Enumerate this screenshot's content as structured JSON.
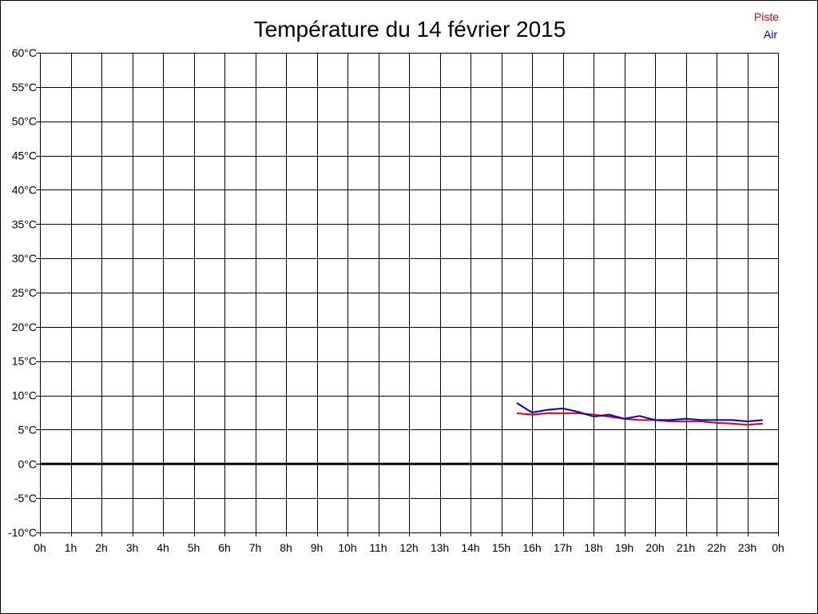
{
  "chart_data": {
    "type": "line",
    "title": "Température du 14 février 2015",
    "xlabel": "",
    "ylabel": "",
    "x_tick_labels": [
      "0h",
      "1h",
      "2h",
      "3h",
      "4h",
      "5h",
      "6h",
      "7h",
      "8h",
      "9h",
      "10h",
      "11h",
      "12h",
      "13h",
      "14h",
      "15h",
      "16h",
      "17h",
      "18h",
      "19h",
      "20h",
      "21h",
      "22h",
      "23h",
      "0h"
    ],
    "y_tick_labels": [
      "60°C",
      "55°C",
      "50°C",
      "45°C",
      "40°C",
      "35°C",
      "30°C",
      "25°C",
      "20°C",
      "15°C",
      "10°C",
      "5°C",
      "0°C",
      "-5°C",
      "-10°C"
    ],
    "xlim": [
      0,
      24
    ],
    "ylim": [
      -10,
      60
    ],
    "x_tick_step_hours": 1,
    "y_tick_step": 5,
    "grid": true,
    "zero_line": true,
    "legend_position": "top-right",
    "series": [
      {
        "name": "Piste",
        "color": "#dd0000",
        "x": [
          15.5,
          16.0,
          16.5,
          17.0,
          17.5,
          18.0,
          18.5,
          19.0,
          19.5,
          20.0,
          20.5,
          21.0,
          21.5,
          22.0,
          22.5,
          23.0,
          23.5
        ],
        "y": [
          7.4,
          7.2,
          7.4,
          7.4,
          7.4,
          7.2,
          6.9,
          6.6,
          6.4,
          6.4,
          6.2,
          6.2,
          6.2,
          6.0,
          5.9,
          5.7,
          5.9
        ]
      },
      {
        "name": "Air",
        "color": "#0000cc",
        "x": [
          15.5,
          16.0,
          16.5,
          17.0,
          17.5,
          18.0,
          18.5,
          19.0,
          19.5,
          20.0,
          20.5,
          21.0,
          21.5,
          22.0,
          22.5,
          23.0,
          23.5
        ],
        "y": [
          8.9,
          7.5,
          7.9,
          8.1,
          7.6,
          6.9,
          7.2,
          6.6,
          7.0,
          6.4,
          6.4,
          6.6,
          6.4,
          6.4,
          6.4,
          6.2,
          6.4
        ]
      }
    ]
  }
}
